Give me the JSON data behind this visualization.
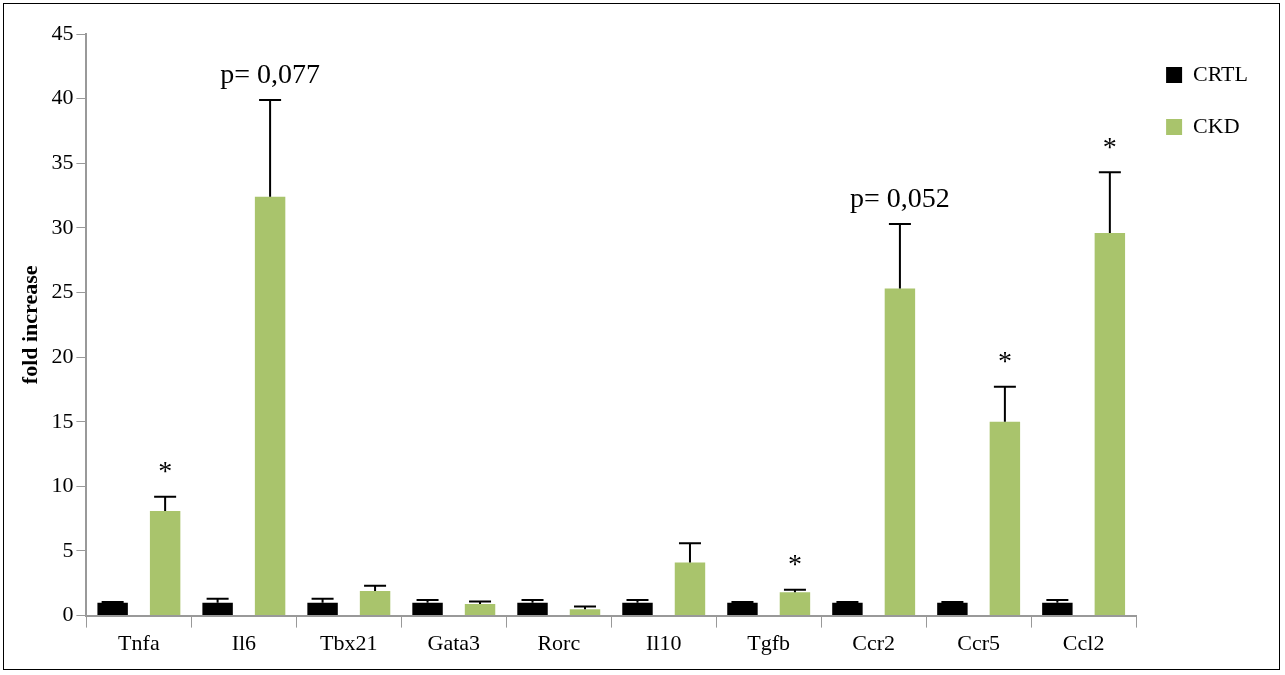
{
  "chart_data": {
    "type": "bar",
    "ylabel": "fold increase",
    "categories": [
      "Tnfa",
      "Il6",
      "Tbx21",
      "Gata3",
      "Rorc",
      "Il10",
      "Tgfb",
      "Ccr2",
      "Ccr5",
      "Ccl2"
    ],
    "series": [
      {
        "name": "CRTL",
        "color": "#000000",
        "values": [
          1,
          1,
          1,
          1,
          1,
          1,
          1,
          1,
          1,
          1
        ],
        "errors": [
          0.05,
          0.3,
          0.3,
          0.2,
          0.2,
          0.2,
          0.05,
          0.05,
          0.05,
          0.2
        ]
      },
      {
        "name": "CKD",
        "color": "#a9c46c",
        "values": [
          8.1,
          32.4,
          1.9,
          0.9,
          0.5,
          4.1,
          1.8,
          25.3,
          15.0,
          29.6
        ],
        "errors": [
          1.1,
          7.5,
          0.4,
          0.2,
          0.2,
          1.5,
          0.2,
          5.0,
          2.7,
          4.7
        ]
      }
    ],
    "ylim": [
      0,
      45
    ],
    "yticks": [
      0,
      5,
      10,
      15,
      20,
      25,
      30,
      35,
      40,
      45
    ],
    "grid": false,
    "legend": "top right",
    "annotations": [
      "*",
      "p= 0,077",
      "*",
      "p= 0,052",
      "*",
      "*"
    ]
  }
}
